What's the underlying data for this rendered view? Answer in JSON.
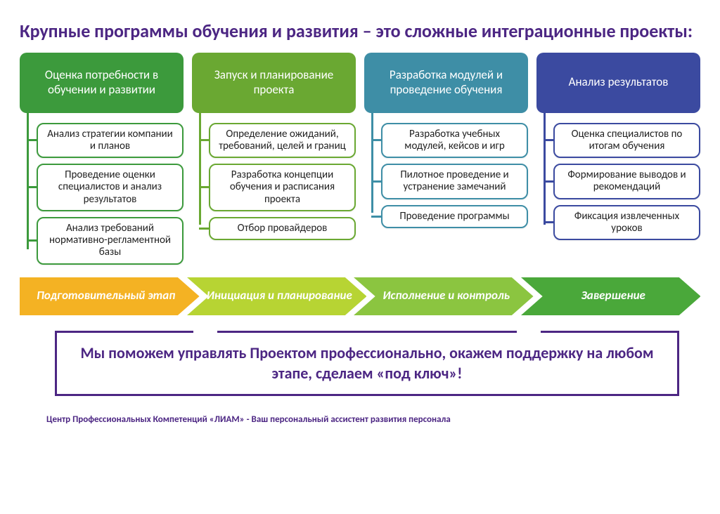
{
  "title": "Крупные программы обучения и развития – это сложные интеграционные проекты:",
  "colors": {
    "purple": "#4c2683",
    "col1_header": "#3c9a3c",
    "col1_border": "#3c9a3c",
    "col2_header": "#6aa832",
    "col2_border": "#6aa832",
    "col3_header": "#3e8ea6",
    "col3_border": "#3e8ea6",
    "col4_header": "#3b4aa0",
    "col4_border": "#3b4aa0",
    "arrow1": "#f4b223",
    "arrow2": "#b7d433",
    "arrow3": "#8bc540",
    "arrow4": "#4aa83a"
  },
  "columns": [
    {
      "header": "Оценка потребности в обучении и развитии",
      "header_bg": "#3c9a3c",
      "border": "#3c9a3c",
      "items": [
        "Анализ стратегии компании и планов",
        "Проведение оценки специалистов и анализ результатов",
        "Анализ требований нормативно-регламентной базы"
      ]
    },
    {
      "header": "Запуск и планирование проекта",
      "header_bg": "#6aa832",
      "border": "#6aa832",
      "items": [
        "Определение ожиданий, требований, целей и границ",
        "Разработка концепции обучения и расписания проекта",
        "Отбор провайдеров"
      ]
    },
    {
      "header": "Разработка модулей и проведение обучения",
      "header_bg": "#3e8ea6",
      "border": "#3e8ea6",
      "items": [
        "Разработка учебных модулей, кейсов и игр",
        "Пилотное проведение и устранение замечаний",
        "Проведение программы"
      ]
    },
    {
      "header": "Анализ результатов",
      "header_bg": "#3b4aa0",
      "border": "#3b4aa0",
      "items": [
        "Оценка специалистов по итогам обучения",
        "Формирование выводов и рекомендаций",
        "Фиксация извлеченных уроков"
      ]
    }
  ],
  "arrows": [
    {
      "label": "Подготовительный этап",
      "fill": "#f4b223"
    },
    {
      "label": "Инициация и планирование",
      "fill": "#b7d433"
    },
    {
      "label": "Исполнение и контроль",
      "fill": "#8bc540"
    },
    {
      "label": "Завершение",
      "fill": "#4aa83a"
    }
  ],
  "callout": "Мы поможем управлять Проектом профессионально, окажем поддержку на любом этапе, сделаем «под ключ»!",
  "footer": "Центр Профессиональных Компетенций «ЛИАМ» - Ваш персональный ассистент развития персонала"
}
